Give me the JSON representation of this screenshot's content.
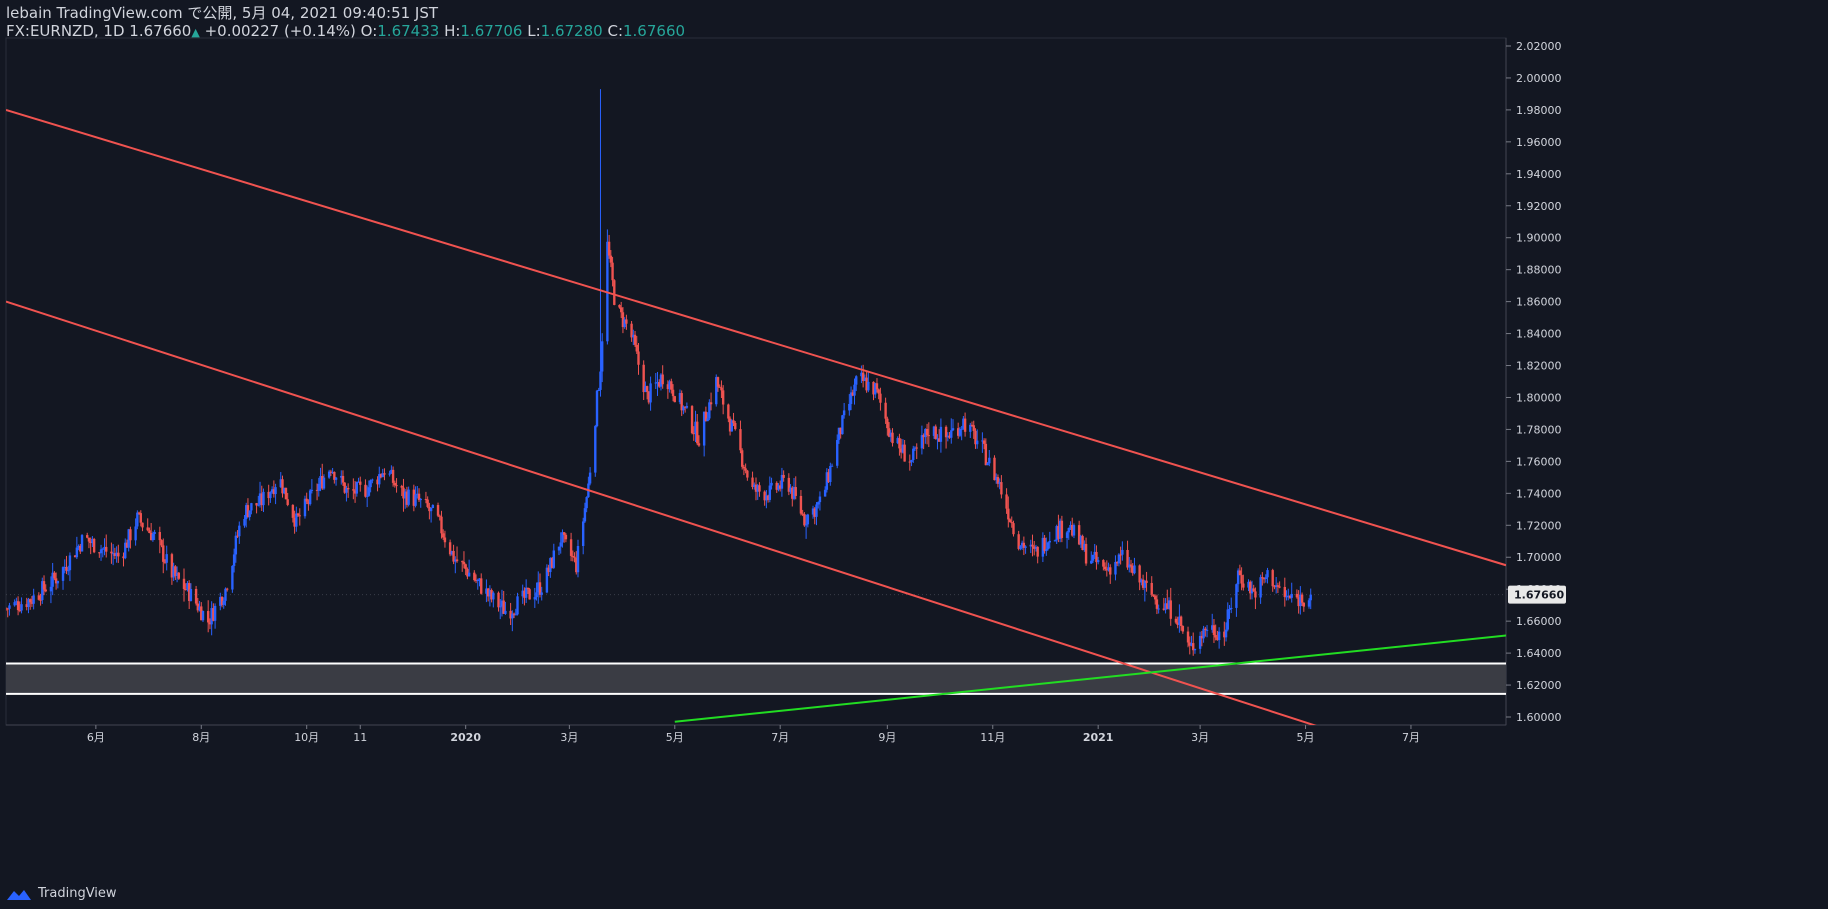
{
  "header": {
    "line1": "lebain TradingView.com で公開, 5月 04, 2021 09:40:51 JST",
    "symbol": "FX:EURNZD, 1D",
    "last": "1.67660",
    "change": "+0.00227 (+0.14%)",
    "o_label": "O:",
    "o_value": "1.67433",
    "h_label": "H:",
    "h_value": "1.67706",
    "l_label": "L:",
    "l_value": "1.67280",
    "c_label": "C:",
    "c_value": "1.67660"
  },
  "footer": {
    "brand": "TradingView",
    "icon": "tradingview-logo-icon"
  },
  "colors": {
    "background": "#131722",
    "up_candle": "#2962ff",
    "down_candle": "#ef5350",
    "channel_line": "#f05350",
    "support_line": "#22dd22",
    "zone_fill": "#3a3c44",
    "zone_border": "#ffffff",
    "price_badge": "#e8e8e8"
  },
  "chart_data": {
    "type": "candlestick",
    "symbol": "FX:EURNZD",
    "timeframe": "1D",
    "x_range": [
      "2019-04-10",
      "2021-08-25"
    ],
    "ylim": [
      1.595,
      2.025
    ],
    "y_ticks": [
      "2.02000",
      "2.00000",
      "1.98000",
      "1.96000",
      "1.94000",
      "1.92000",
      "1.90000",
      "1.88000",
      "1.86000",
      "1.84000",
      "1.82000",
      "1.80000",
      "1.78000",
      "1.76000",
      "1.74000",
      "1.72000",
      "1.70000",
      "1.68000",
      "1.66000",
      "1.64000",
      "1.62000",
      "1.60000"
    ],
    "x_ticks": [
      {
        "label": "6月",
        "date": "2019-06-01"
      },
      {
        "label": "8月",
        "date": "2019-08-01"
      },
      {
        "label": "10月",
        "date": "2019-10-01"
      },
      {
        "label": "11",
        "date": "2019-11-01"
      },
      {
        "label": "2020",
        "date": "2020-01-01"
      },
      {
        "label": "3月",
        "date": "2020-03-01"
      },
      {
        "label": "5月",
        "date": "2020-05-01"
      },
      {
        "label": "7月",
        "date": "2020-07-01"
      },
      {
        "label": "9月",
        "date": "2020-09-01"
      },
      {
        "label": "11月",
        "date": "2020-11-01"
      },
      {
        "label": "2021",
        "date": "2021-01-01"
      },
      {
        "label": "3月",
        "date": "2021-03-01"
      },
      {
        "label": "5月",
        "date": "2021-05-01"
      },
      {
        "label": "7月",
        "date": "2021-07-01"
      }
    ],
    "last_price": 1.6766,
    "last_price_label": "1.67660",
    "price_path": [
      [
        "2019-04-10",
        1.668
      ],
      [
        "2019-04-25",
        1.674
      ],
      [
        "2019-05-10",
        1.688
      ],
      [
        "2019-05-25",
        1.712
      ],
      [
        "2019-06-05",
        1.705
      ],
      [
        "2019-06-15",
        1.7
      ],
      [
        "2019-06-25",
        1.724
      ],
      [
        "2019-07-05",
        1.713
      ],
      [
        "2019-07-15",
        1.69
      ],
      [
        "2019-07-25",
        1.678
      ],
      [
        "2019-08-05",
        1.66
      ],
      [
        "2019-08-15",
        1.68
      ],
      [
        "2019-08-25",
        1.728
      ],
      [
        "2019-09-05",
        1.735
      ],
      [
        "2019-09-15",
        1.75
      ],
      [
        "2019-09-25",
        1.722
      ],
      [
        "2019-10-05",
        1.74
      ],
      [
        "2019-10-15",
        1.757
      ],
      [
        "2019-10-25",
        1.74
      ],
      [
        "2019-11-05",
        1.743
      ],
      [
        "2019-11-15",
        1.755
      ],
      [
        "2019-11-25",
        1.74
      ],
      [
        "2019-12-05",
        1.735
      ],
      [
        "2019-12-15",
        1.725
      ],
      [
        "2019-12-25",
        1.7
      ],
      [
        "2020-01-05",
        1.688
      ],
      [
        "2020-01-15",
        1.675
      ],
      [
        "2020-01-25",
        1.666
      ],
      [
        "2020-02-05",
        1.675
      ],
      [
        "2020-02-15",
        1.683
      ],
      [
        "2020-02-25",
        1.712
      ],
      [
        "2020-03-05",
        1.695
      ],
      [
        "2020-03-12",
        1.745
      ],
      [
        "2020-03-19",
        1.82
      ],
      [
        "2020-03-23",
        1.895
      ],
      [
        "2020-03-28",
        1.855
      ],
      [
        "2020-04-05",
        1.842
      ],
      [
        "2020-04-15",
        1.8
      ],
      [
        "2020-04-25",
        1.815
      ],
      [
        "2020-05-05",
        1.795
      ],
      [
        "2020-05-15",
        1.775
      ],
      [
        "2020-05-25",
        1.81
      ],
      [
        "2020-06-05",
        1.775
      ],
      [
        "2020-06-15",
        1.742
      ],
      [
        "2020-06-25",
        1.74
      ],
      [
        "2020-07-05",
        1.748
      ],
      [
        "2020-07-15",
        1.724
      ],
      [
        "2020-07-25",
        1.735
      ],
      [
        "2020-08-05",
        1.78
      ],
      [
        "2020-08-15",
        1.812
      ],
      [
        "2020-08-25",
        1.805
      ],
      [
        "2020-09-05",
        1.772
      ],
      [
        "2020-09-15",
        1.76
      ],
      [
        "2020-09-25",
        1.78
      ],
      [
        "2020-10-05",
        1.775
      ],
      [
        "2020-10-15",
        1.785
      ],
      [
        "2020-10-25",
        1.77
      ],
      [
        "2020-11-05",
        1.745
      ],
      [
        "2020-11-15",
        1.712
      ],
      [
        "2020-11-25",
        1.702
      ],
      [
        "2020-12-05",
        1.715
      ],
      [
        "2020-12-15",
        1.72
      ],
      [
        "2020-12-25",
        1.702
      ],
      [
        "2021-01-05",
        1.692
      ],
      [
        "2021-01-15",
        1.7
      ],
      [
        "2021-01-25",
        1.685
      ],
      [
        "2021-02-05",
        1.672
      ],
      [
        "2021-02-15",
        1.665
      ],
      [
        "2021-02-23",
        1.642
      ],
      [
        "2021-03-05",
        1.657
      ],
      [
        "2021-03-15",
        1.652
      ],
      [
        "2021-03-23",
        1.69
      ],
      [
        "2021-04-01",
        1.678
      ],
      [
        "2021-04-10",
        1.69
      ],
      [
        "2021-04-18",
        1.675
      ],
      [
        "2021-04-28",
        1.674
      ],
      [
        "2021-05-04",
        1.6766
      ]
    ],
    "spike_high": {
      "date": "2020-03-19",
      "high": 1.993
    },
    "trendlines": [
      {
        "name": "upper-channel",
        "from": [
          "2019-04-10",
          1.98
        ],
        "to": [
          "2021-08-25",
          1.695
        ]
      },
      {
        "name": "lower-channel",
        "from": [
          "2019-04-10",
          1.86
        ],
        "to": [
          "2021-08-25",
          1.556
        ]
      },
      {
        "name": "support-trend",
        "from": [
          "2020-05-01",
          1.597
        ],
        "to": [
          "2021-08-25",
          1.651
        ]
      }
    ],
    "zone": {
      "top": 1.6335,
      "bottom": 1.6145
    }
  }
}
